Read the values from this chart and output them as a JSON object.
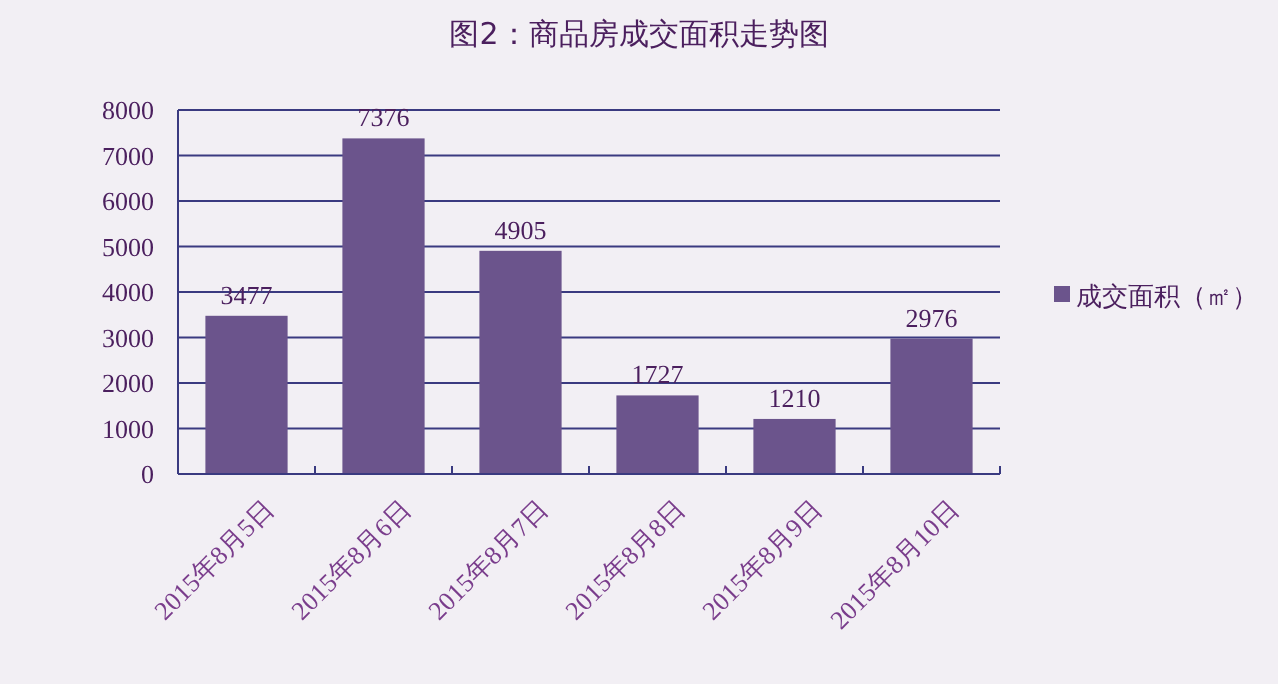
{
  "chart_data": {
    "type": "bar",
    "title": "图2：商品房成交面积走势图",
    "categories": [
      "2015年8月5日",
      "2015年8月6日",
      "2015年8月7日",
      "2015年8月8日",
      "2015年8月9日",
      "2015年8月10日"
    ],
    "series": [
      {
        "name": "成交面积（㎡）",
        "color": "#6b548c",
        "values": [
          3477,
          7376,
          4905,
          1727,
          1210,
          2976
        ]
      }
    ],
    "ylim": [
      0,
      8000
    ],
    "yticks": [
      0,
      1000,
      2000,
      3000,
      4000,
      5000,
      6000,
      7000,
      8000
    ],
    "grid": "y",
    "legend": "right",
    "data_labels": true
  }
}
